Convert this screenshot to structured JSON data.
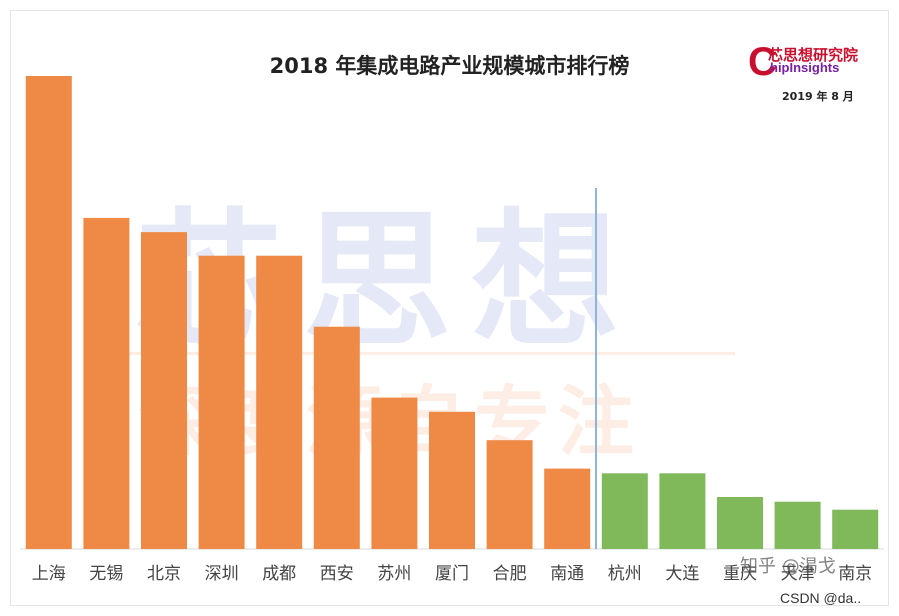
{
  "chart_data": {
    "type": "bar",
    "title": "2018 年集成电路产业规模城市排行榜",
    "categories": [
      "上海",
      "无锡",
      "北京",
      "深圳",
      "成都",
      "西安",
      "苏州",
      "厦门",
      "合肥",
      "南通",
      "杭州",
      "大连",
      "重庆",
      "天津",
      "南京"
    ],
    "values": [
      100,
      70,
      67,
      62,
      62,
      47,
      32,
      29,
      23,
      17,
      16,
      16,
      11,
      10,
      8.3
    ],
    "series_colors": {
      "orange": "#ee8a46",
      "green": "#80b95a"
    },
    "bar_colors": [
      "orange",
      "orange",
      "orange",
      "orange",
      "orange",
      "orange",
      "orange",
      "orange",
      "orange",
      "orange",
      "green",
      "green",
      "green",
      "green",
      "green"
    ],
    "divider_after_index": 9,
    "divider_color": "#8db3d9",
    "xlabel": "",
    "ylabel": "",
    "ylim": [
      0,
      100
    ],
    "grid": false,
    "legend": "none"
  },
  "logo": {
    "mark": "C",
    "name_cn": "芯思想研究院",
    "name_en": "hipInsights",
    "date": "2019 年 8 月"
  },
  "watermark": {
    "big": "芯思想",
    "small": "深度源自专注"
  },
  "footer": {
    "zhihu": "知乎 @渴戈",
    "csdn": "CSDN @da.."
  }
}
